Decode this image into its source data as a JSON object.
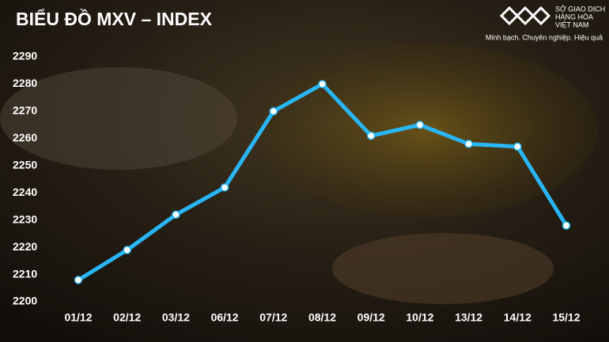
{
  "chart_data": {
    "type": "line",
    "title": "BIỂU ĐỒ MXV – INDEX",
    "categories": [
      "01/12",
      "02/12",
      "03/12",
      "06/12",
      "07/12",
      "08/12",
      "09/12",
      "10/12",
      "13/12",
      "14/12",
      "15/12"
    ],
    "values": [
      2208,
      2219,
      2232,
      2242,
      2270,
      2280,
      2261,
      2265,
      2258,
      2257,
      2228
    ],
    "color": "#29b6f6",
    "ylim": [
      2200,
      2290
    ],
    "yticks": [
      2200,
      2210,
      2220,
      2230,
      2240,
      2250,
      2260,
      2270,
      2280,
      2290
    ],
    "grid": false
  },
  "logo": {
    "name_lines": [
      "SỞ GIAO DỊCH",
      "HÀNG HÓA",
      "VIỆT NAM"
    ],
    "slogan": "Minh bạch. Chuyên nghiệp. Hiệu quả"
  }
}
